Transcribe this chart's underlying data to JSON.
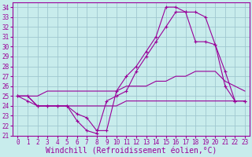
{
  "xlabel": "Windchill (Refroidissement éolien,°C)",
  "background_color": "#c8ecec",
  "grid_color": "#a0c8d0",
  "line_color": "#990099",
  "xlim": [
    -0.5,
    23.5
  ],
  "ylim": [
    21,
    34.5
  ],
  "xticks": [
    0,
    1,
    2,
    3,
    4,
    5,
    6,
    7,
    8,
    9,
    10,
    11,
    12,
    13,
    14,
    15,
    16,
    17,
    18,
    19,
    20,
    21,
    22,
    23
  ],
  "yticks": [
    21,
    22,
    23,
    24,
    25,
    26,
    27,
    28,
    29,
    30,
    31,
    32,
    33,
    34
  ],
  "line1_x": [
    0,
    1,
    2,
    3,
    4,
    5,
    6,
    7,
    8,
    9,
    10,
    11,
    12,
    13,
    14,
    15,
    16,
    17,
    18,
    19,
    20,
    21,
    22,
    23
  ],
  "line1_y": [
    25.0,
    25.0,
    24.0,
    24.0,
    24.0,
    24.0,
    23.2,
    22.8,
    21.5,
    21.5,
    25.5,
    27.0,
    28.0,
    29.5,
    31.0,
    34.0,
    34.0,
    33.5,
    33.5,
    33.0,
    30.2,
    26.0,
    24.5,
    24.5
  ],
  "line2_x": [
    0,
    1,
    2,
    3,
    4,
    5,
    6,
    7,
    8,
    9,
    10,
    11,
    12,
    13,
    14,
    15,
    16,
    17,
    18,
    19,
    20,
    21,
    22,
    23
  ],
  "line2_y": [
    25.0,
    24.5,
    24.0,
    24.0,
    24.0,
    24.0,
    22.5,
    21.5,
    21.2,
    24.5,
    25.0,
    25.5,
    27.5,
    29.0,
    30.5,
    32.0,
    33.5,
    33.5,
    30.5,
    30.5,
    30.2,
    27.5,
    24.5,
    24.5
  ],
  "line3_x": [
    0,
    1,
    2,
    3,
    4,
    5,
    6,
    7,
    8,
    9,
    10,
    11,
    12,
    13,
    14,
    15,
    16,
    17,
    18,
    19,
    20,
    21,
    22,
    23
  ],
  "line3_y": [
    25.0,
    25.0,
    25.0,
    25.5,
    25.5,
    25.5,
    25.5,
    25.5,
    25.5,
    25.5,
    25.5,
    26.0,
    26.0,
    26.0,
    26.5,
    26.5,
    27.0,
    27.0,
    27.5,
    27.5,
    27.5,
    26.5,
    26.0,
    25.5
  ],
  "line4_x": [
    0,
    1,
    2,
    3,
    4,
    5,
    6,
    7,
    8,
    9,
    10,
    11,
    12,
    13,
    14,
    15,
    16,
    17,
    18,
    19,
    20,
    21,
    22,
    23
  ],
  "line4_y": [
    25.0,
    25.0,
    24.0,
    24.0,
    24.0,
    24.0,
    24.0,
    24.0,
    24.0,
    24.0,
    24.0,
    24.5,
    24.5,
    24.5,
    24.5,
    24.5,
    24.5,
    24.5,
    24.5,
    24.5,
    24.5,
    24.5,
    24.5,
    24.5
  ],
  "marker": "+",
  "marker_size": 3,
  "linewidth": 0.8,
  "font_family": "monospace",
  "tick_fontsize": 5.5,
  "xlabel_fontsize": 7.0
}
